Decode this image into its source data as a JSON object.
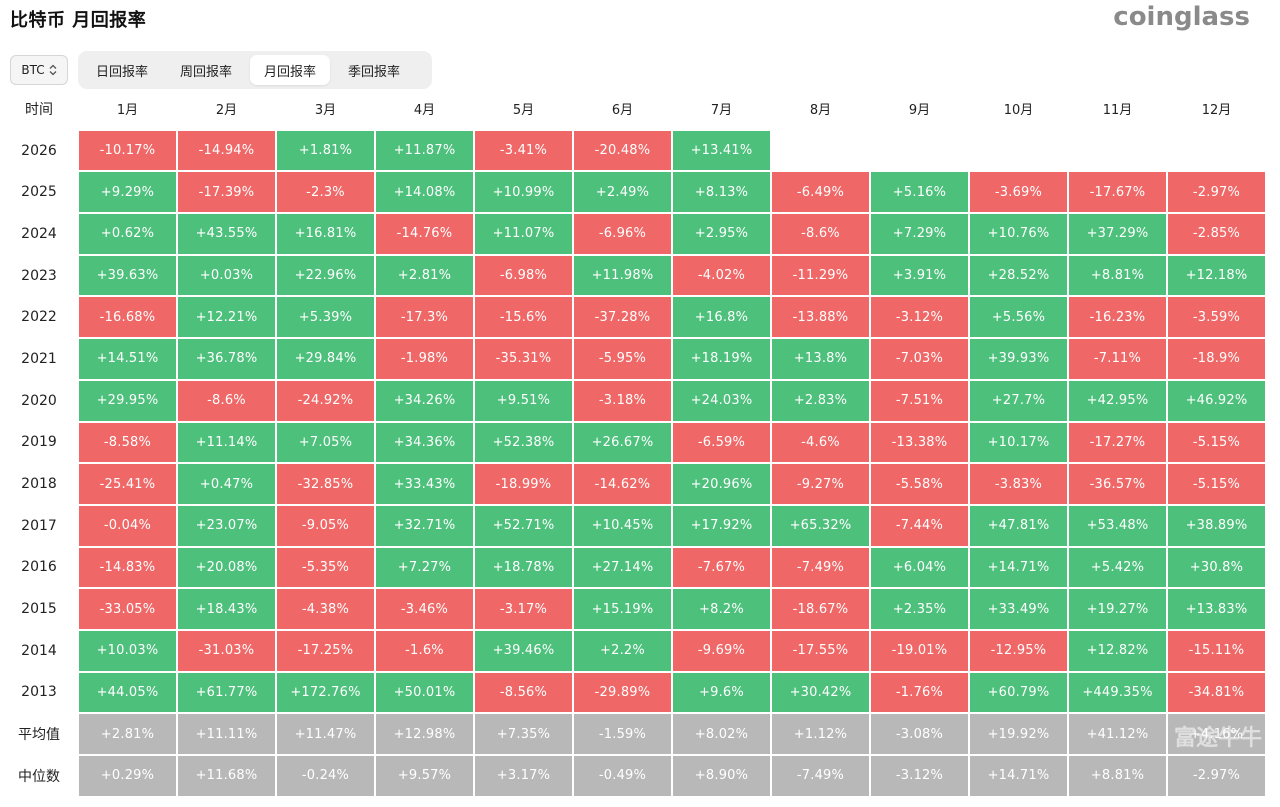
{
  "header": {
    "title": "比特币 月回报率",
    "brand": "coinglass"
  },
  "coin_select": {
    "value": "BTC"
  },
  "tabs": [
    {
      "label": "日回报率",
      "active": false
    },
    {
      "label": "周回报率",
      "active": false
    },
    {
      "label": "月回报率",
      "active": true
    },
    {
      "label": "季回报率",
      "active": false
    }
  ],
  "watermark": "富途牛牛",
  "colors": {
    "positive": "#4dc07c",
    "negative": "#f06767",
    "summary": "#b8b8b8"
  },
  "chart_data": {
    "type": "table",
    "corner_label": "时间",
    "months": [
      "1月",
      "2月",
      "3月",
      "4月",
      "5月",
      "6月",
      "7月",
      "8月",
      "9月",
      "10月",
      "11月",
      "12月"
    ],
    "rows": [
      {
        "year": "2026",
        "values": [
          "-10.17%",
          "-14.94%",
          "+1.81%",
          "+11.87%",
          "-3.41%",
          "-20.48%",
          "+13.41%",
          null,
          null,
          null,
          null,
          null
        ]
      },
      {
        "year": "2025",
        "values": [
          "+9.29%",
          "-17.39%",
          "-2.3%",
          "+14.08%",
          "+10.99%",
          "+2.49%",
          "+8.13%",
          "-6.49%",
          "+5.16%",
          "-3.69%",
          "-17.67%",
          "-2.97%"
        ]
      },
      {
        "year": "2024",
        "values": [
          "+0.62%",
          "+43.55%",
          "+16.81%",
          "-14.76%",
          "+11.07%",
          "-6.96%",
          "+2.95%",
          "-8.6%",
          "+7.29%",
          "+10.76%",
          "+37.29%",
          "-2.85%"
        ]
      },
      {
        "year": "2023",
        "values": [
          "+39.63%",
          "+0.03%",
          "+22.96%",
          "+2.81%",
          "-6.98%",
          "+11.98%",
          "-4.02%",
          "-11.29%",
          "+3.91%",
          "+28.52%",
          "+8.81%",
          "+12.18%"
        ]
      },
      {
        "year": "2022",
        "values": [
          "-16.68%",
          "+12.21%",
          "+5.39%",
          "-17.3%",
          "-15.6%",
          "-37.28%",
          "+16.8%",
          "-13.88%",
          "-3.12%",
          "+5.56%",
          "-16.23%",
          "-3.59%"
        ]
      },
      {
        "year": "2021",
        "values": [
          "+14.51%",
          "+36.78%",
          "+29.84%",
          "-1.98%",
          "-35.31%",
          "-5.95%",
          "+18.19%",
          "+13.8%",
          "-7.03%",
          "+39.93%",
          "-7.11%",
          "-18.9%"
        ]
      },
      {
        "year": "2020",
        "values": [
          "+29.95%",
          "-8.6%",
          "-24.92%",
          "+34.26%",
          "+9.51%",
          "-3.18%",
          "+24.03%",
          "+2.83%",
          "-7.51%",
          "+27.7%",
          "+42.95%",
          "+46.92%"
        ]
      },
      {
        "year": "2019",
        "values": [
          "-8.58%",
          "+11.14%",
          "+7.05%",
          "+34.36%",
          "+52.38%",
          "+26.67%",
          "-6.59%",
          "-4.6%",
          "-13.38%",
          "+10.17%",
          "-17.27%",
          "-5.15%"
        ]
      },
      {
        "year": "2018",
        "values": [
          "-25.41%",
          "+0.47%",
          "-32.85%",
          "+33.43%",
          "-18.99%",
          "-14.62%",
          "+20.96%",
          "-9.27%",
          "-5.58%",
          "-3.83%",
          "-36.57%",
          "-5.15%"
        ]
      },
      {
        "year": "2017",
        "values": [
          "-0.04%",
          "+23.07%",
          "-9.05%",
          "+32.71%",
          "+52.71%",
          "+10.45%",
          "+17.92%",
          "+65.32%",
          "-7.44%",
          "+47.81%",
          "+53.48%",
          "+38.89%"
        ]
      },
      {
        "year": "2016",
        "values": [
          "-14.83%",
          "+20.08%",
          "-5.35%",
          "+7.27%",
          "+18.78%",
          "+27.14%",
          "-7.67%",
          "-7.49%",
          "+6.04%",
          "+14.71%",
          "+5.42%",
          "+30.8%"
        ]
      },
      {
        "year": "2015",
        "values": [
          "-33.05%",
          "+18.43%",
          "-4.38%",
          "-3.46%",
          "-3.17%",
          "+15.19%",
          "+8.2%",
          "-18.67%",
          "+2.35%",
          "+33.49%",
          "+19.27%",
          "+13.83%"
        ]
      },
      {
        "year": "2014",
        "values": [
          "+10.03%",
          "-31.03%",
          "-17.25%",
          "-1.6%",
          "+39.46%",
          "+2.2%",
          "-9.69%",
          "-17.55%",
          "-19.01%",
          "-12.95%",
          "+12.82%",
          "-15.11%"
        ]
      },
      {
        "year": "2013",
        "values": [
          "+44.05%",
          "+61.77%",
          "+172.76%",
          "+50.01%",
          "-8.56%",
          "-29.89%",
          "+9.6%",
          "+30.42%",
          "-1.76%",
          "+60.79%",
          "+449.35%",
          "-34.81%"
        ]
      }
    ],
    "summary_rows": [
      {
        "label": "平均值",
        "values": [
          "+2.81%",
          "+11.11%",
          "+11.47%",
          "+12.98%",
          "+7.35%",
          "-1.59%",
          "+8.02%",
          "+1.12%",
          "-3.08%",
          "+19.92%",
          "+41.12%",
          "+4.16%"
        ]
      },
      {
        "label": "中位数",
        "values": [
          "+0.29%",
          "+11.68%",
          "-0.24%",
          "+9.57%",
          "+3.17%",
          "-0.49%",
          "+8.90%",
          "-7.49%",
          "-3.12%",
          "+14.71%",
          "+8.81%",
          "-2.97%"
        ]
      }
    ]
  }
}
